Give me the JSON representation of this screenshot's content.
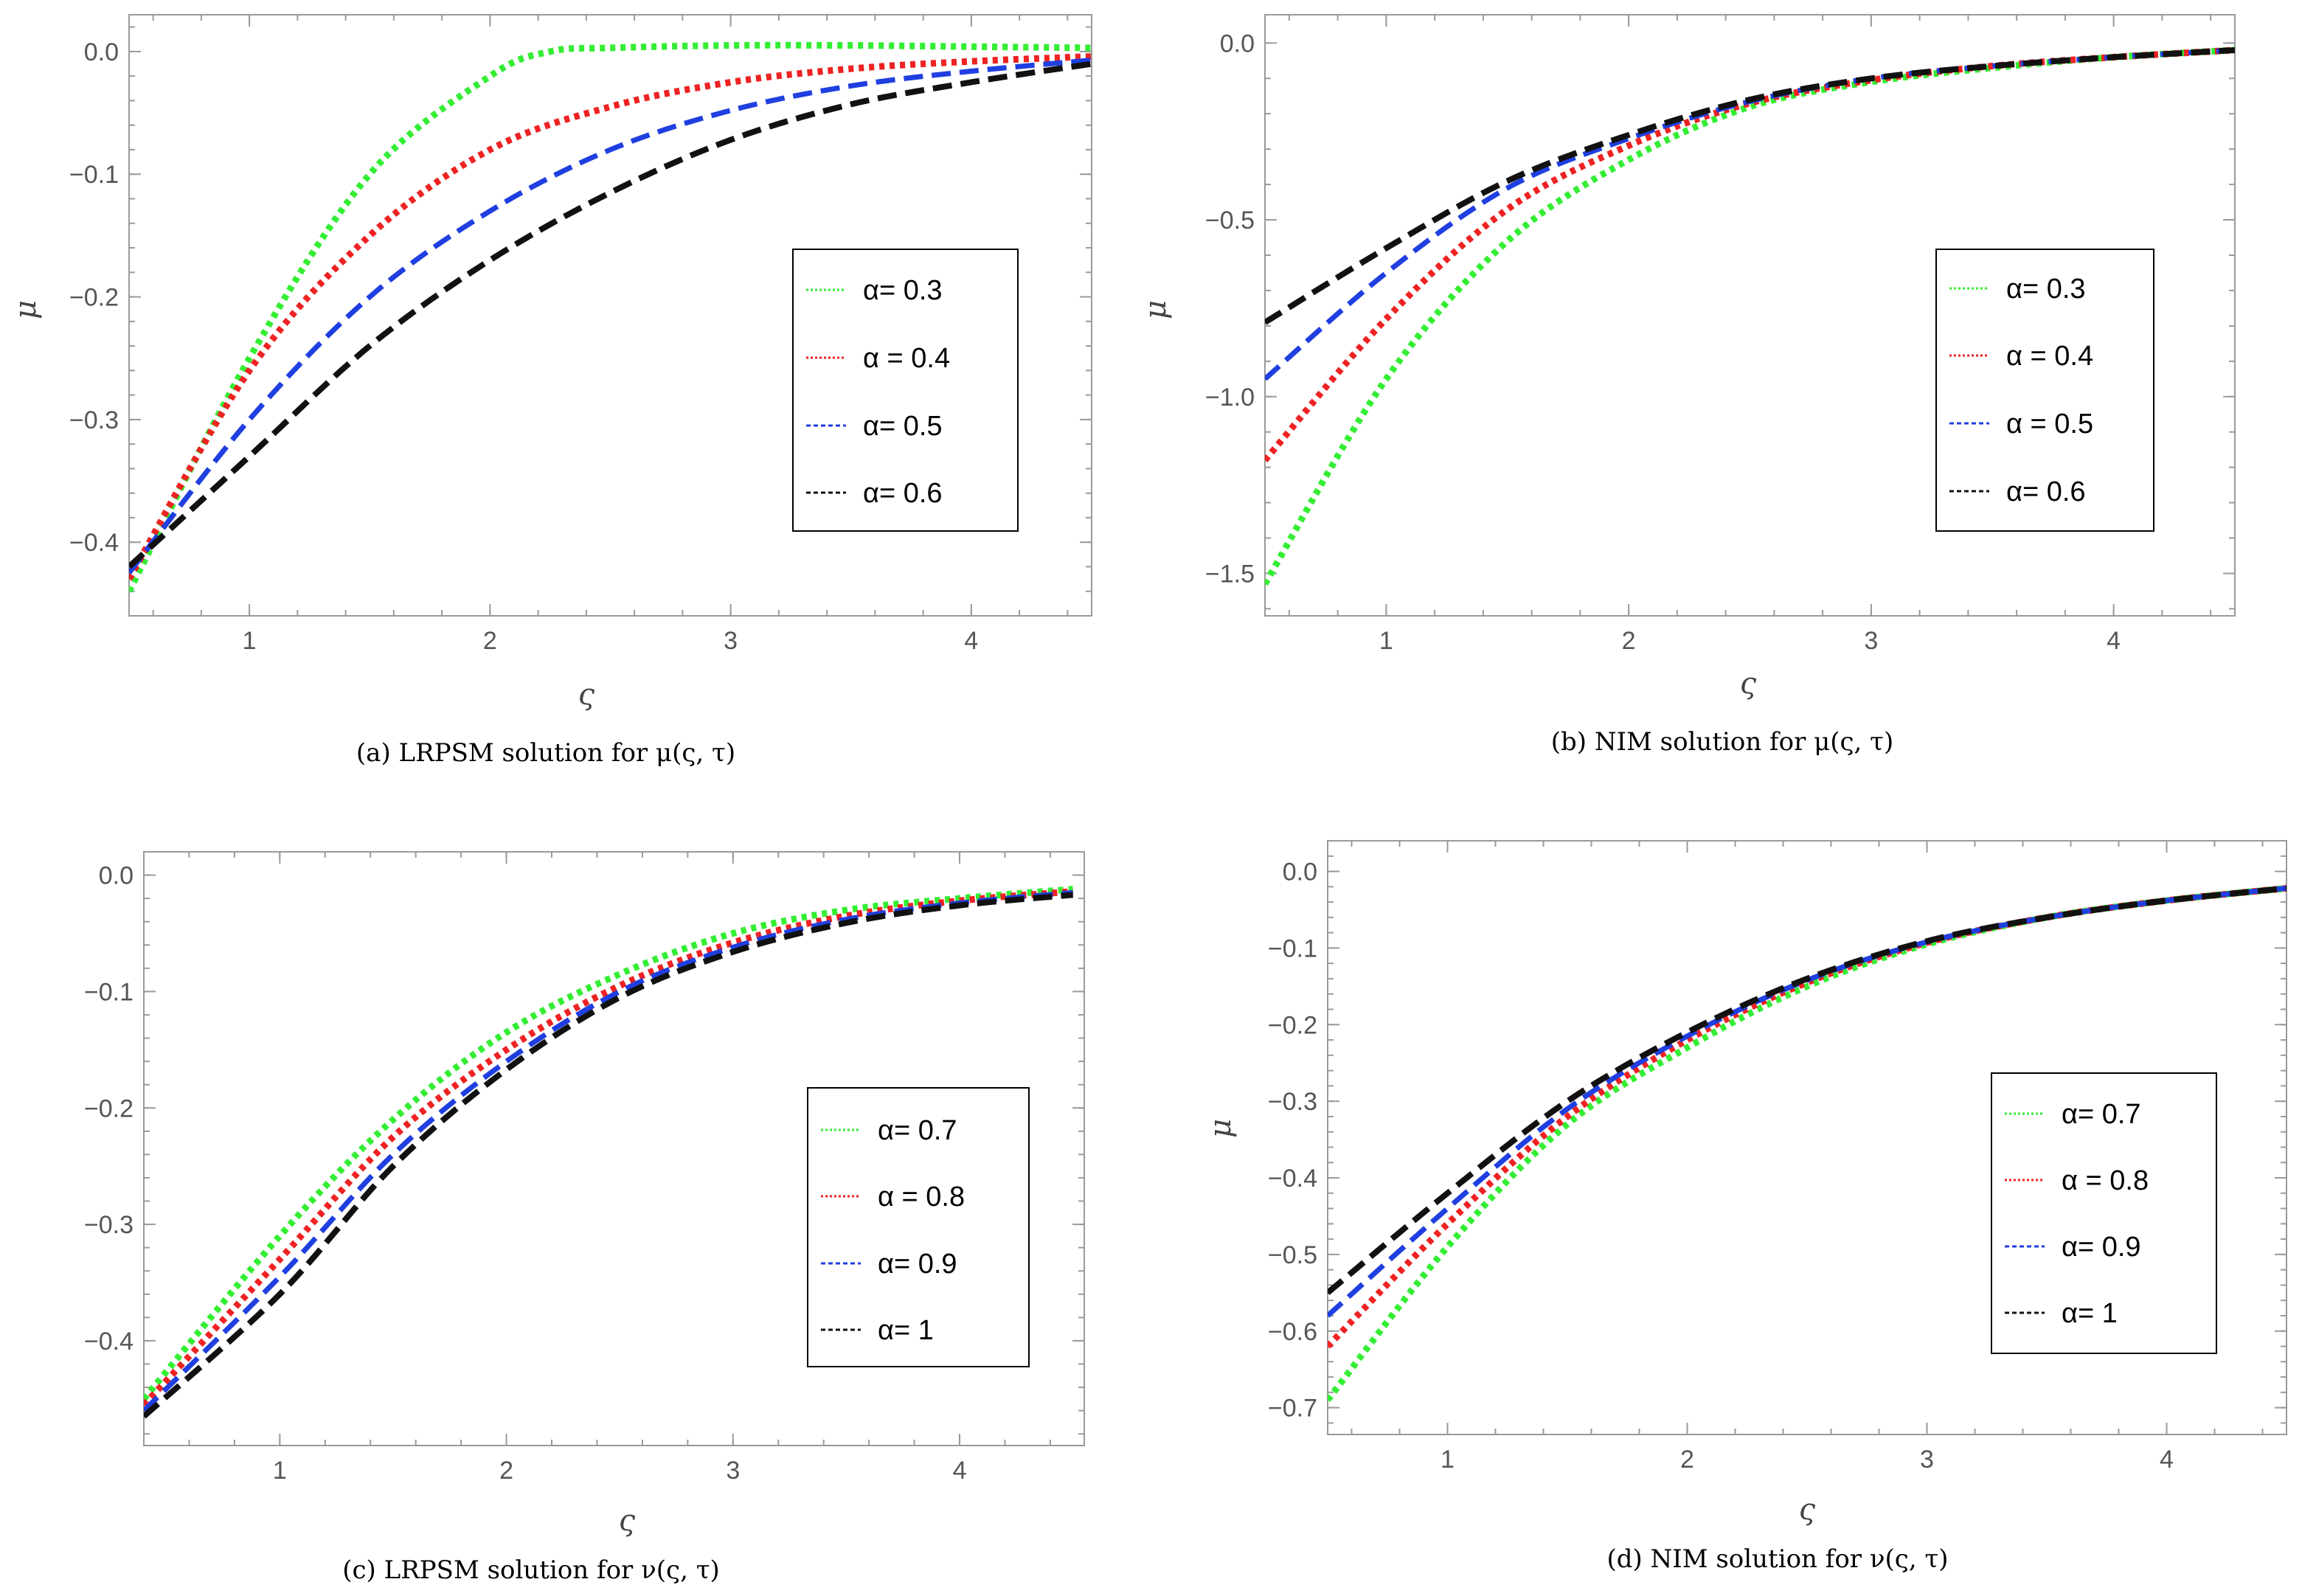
{
  "colors": {
    "green": "#33ee33",
    "red": "#ee2222",
    "blue": "#1f3fe0",
    "black": "#111111"
  },
  "chart_data": [
    {
      "type": "line",
      "caption": "(a) LRPSM solution for μ(ς, τ)",
      "xlabel": "ς",
      "ylabel": "μ",
      "xlim": [
        0.5,
        4.5
      ],
      "ylim": [
        -0.46,
        0.03
      ],
      "xticks": [
        1,
        2,
        3,
        4
      ],
      "yticks": [
        0.0,
        -0.1,
        -0.2,
        -0.3,
        -0.4
      ],
      "ytick_labels": [
        "0.0",
        "−0.1",
        "−0.2",
        "−0.3",
        "−0.4"
      ],
      "legend_position": "right-middle",
      "series": [
        {
          "name": "α= 0.3",
          "color": "green",
          "style": "dotted",
          "x": [
            0.5,
            1,
            1.5,
            2,
            2.25,
            2.5,
            3,
            3.5,
            4,
            4.5
          ],
          "y": [
            -0.44,
            -0.25,
            -0.1,
            -0.02,
            0.0,
            0.003,
            0.005,
            0.005,
            0.004,
            0.003
          ]
        },
        {
          "name": "α = 0.4",
          "color": "red",
          "style": "dotted",
          "x": [
            0.5,
            1,
            1.5,
            2,
            2.5,
            3,
            3.5,
            4,
            4.5
          ],
          "y": [
            -0.43,
            -0.26,
            -0.15,
            -0.08,
            -0.045,
            -0.025,
            -0.014,
            -0.008,
            -0.004
          ]
        },
        {
          "name": "α= 0.5",
          "color": "blue",
          "style": "dashed",
          "x": [
            0.5,
            1,
            1.5,
            2,
            2.5,
            3,
            3.5,
            4,
            4.5
          ],
          "y": [
            -0.425,
            -0.3,
            -0.2,
            -0.13,
            -0.08,
            -0.048,
            -0.028,
            -0.016,
            -0.007
          ]
        },
        {
          "name": "α= 0.6",
          "color": "black",
          "style": "dashed",
          "x": [
            0.5,
            1,
            1.5,
            2,
            2.5,
            3,
            3.5,
            4,
            4.5
          ],
          "y": [
            -0.42,
            -0.33,
            -0.24,
            -0.17,
            -0.115,
            -0.072,
            -0.043,
            -0.025,
            -0.01
          ]
        }
      ]
    },
    {
      "type": "line",
      "caption": "(b) NIM solution for μ(ς, τ)",
      "xlabel": "ς",
      "ylabel": "μ",
      "xlim": [
        0.5,
        4.5
      ],
      "ylim": [
        -1.62,
        0.08
      ],
      "xticks": [
        1,
        2,
        3,
        4
      ],
      "yticks": [
        0.0,
        -0.5,
        -1.0,
        -1.5
      ],
      "ytick_labels": [
        "0.0",
        "−0.5",
        "−1.0",
        "−1.5"
      ],
      "legend_position": "right-middle",
      "series": [
        {
          "name": "α= 0.3",
          "color": "green",
          "style": "dotted",
          "x": [
            0.5,
            1,
            1.5,
            2,
            2.5,
            3,
            3.5,
            4,
            4.5
          ],
          "y": [
            -1.53,
            -0.95,
            -0.56,
            -0.33,
            -0.18,
            -0.11,
            -0.07,
            -0.04,
            -0.02
          ]
        },
        {
          "name": "α = 0.4",
          "color": "red",
          "style": "dotted",
          "x": [
            0.5,
            1,
            1.5,
            2,
            2.5,
            3,
            3.5,
            4,
            4.5
          ],
          "y": [
            -1.18,
            -0.78,
            -0.47,
            -0.29,
            -0.17,
            -0.105,
            -0.065,
            -0.04,
            -0.02
          ]
        },
        {
          "name": "α = 0.5",
          "color": "blue",
          "style": "dashed",
          "x": [
            0.5,
            1,
            1.5,
            2,
            2.5,
            3,
            3.5,
            4,
            4.5
          ],
          "y": [
            -0.95,
            -0.65,
            -0.41,
            -0.27,
            -0.165,
            -0.1,
            -0.065,
            -0.04,
            -0.02
          ]
        },
        {
          "name": "α= 0.6",
          "color": "black",
          "style": "dashed",
          "x": [
            0.5,
            1,
            1.5,
            2,
            2.5,
            3,
            3.5,
            4,
            4.5
          ],
          "y": [
            -0.79,
            -0.58,
            -0.39,
            -0.26,
            -0.16,
            -0.1,
            -0.065,
            -0.04,
            -0.02
          ]
        }
      ]
    },
    {
      "type": "line",
      "caption": "(c) LRPSM solution for ν(ς, τ)",
      "xlabel": "ς",
      "ylabel": "",
      "xlim": [
        0.4,
        4.55
      ],
      "ylim": [
        -0.49,
        0.02
      ],
      "xticks": [
        1,
        2,
        3,
        4
      ],
      "yticks": [
        0.0,
        -0.1,
        -0.2,
        -0.3,
        -0.4
      ],
      "ytick_labels": [
        "0.0",
        "−0.1",
        "−0.2",
        "−0.3",
        "−0.4"
      ],
      "legend_position": "right-middle",
      "series": [
        {
          "name": "α= 0.7",
          "color": "green",
          "style": "dotted",
          "x": [
            0.4,
            1,
            1.5,
            2,
            2.5,
            3,
            3.5,
            4,
            4.5
          ],
          "y": [
            -0.45,
            -0.31,
            -0.21,
            -0.135,
            -0.085,
            -0.05,
            -0.03,
            -0.02,
            -0.012
          ]
        },
        {
          "name": "α = 0.8",
          "color": "red",
          "style": "dotted",
          "x": [
            0.4,
            1,
            1.5,
            2,
            2.5,
            3,
            3.5,
            4,
            4.5
          ],
          "y": [
            -0.455,
            -0.33,
            -0.225,
            -0.15,
            -0.095,
            -0.058,
            -0.035,
            -0.022,
            -0.014
          ]
        },
        {
          "name": "α= 0.9",
          "color": "blue",
          "style": "dashed",
          "x": [
            0.4,
            1,
            1.5,
            2,
            2.5,
            3,
            3.5,
            4,
            4.5
          ],
          "y": [
            -0.46,
            -0.345,
            -0.24,
            -0.16,
            -0.1,
            -0.062,
            -0.038,
            -0.024,
            -0.015
          ]
        },
        {
          "name": "α= 1",
          "color": "black",
          "style": "dashed",
          "x": [
            0.4,
            1,
            1.5,
            2,
            2.5,
            3,
            3.5,
            4,
            4.5
          ],
          "y": [
            -0.465,
            -0.36,
            -0.25,
            -0.167,
            -0.105,
            -0.066,
            -0.041,
            -0.026,
            -0.017
          ]
        }
      ]
    },
    {
      "type": "line",
      "caption": "(d) NIM solution for ν(ς, τ)",
      "xlabel": "ς",
      "ylabel": "μ",
      "xlim": [
        0.5,
        4.5
      ],
      "ylim": [
        -0.735,
        0.04
      ],
      "xticks": [
        1,
        2,
        3,
        4
      ],
      "yticks": [
        0.0,
        -0.1,
        -0.2,
        -0.3,
        -0.4,
        -0.5,
        -0.6,
        -0.7
      ],
      "ytick_labels": [
        "0.0",
        "−0.1",
        "−0.2",
        "−0.3",
        "−0.4",
        "−0.5",
        "−0.6",
        "−0.7"
      ],
      "legend_position": "right-middle",
      "series": [
        {
          "name": "α= 0.7",
          "color": "green",
          "style": "dotted",
          "x": [
            0.5,
            1,
            1.5,
            2,
            2.5,
            3,
            3.5,
            4,
            4.5
          ],
          "y": [
            -0.69,
            -0.49,
            -0.33,
            -0.23,
            -0.15,
            -0.095,
            -0.06,
            -0.038,
            -0.022
          ]
        },
        {
          "name": "α = 0.8",
          "color": "red",
          "style": "dotted",
          "x": [
            0.5,
            1,
            1.5,
            2,
            2.5,
            3,
            3.5,
            4,
            4.5
          ],
          "y": [
            -0.62,
            -0.46,
            -0.32,
            -0.22,
            -0.145,
            -0.093,
            -0.06,
            -0.038,
            -0.022
          ]
        },
        {
          "name": "α= 0.9",
          "color": "blue",
          "style": "dashed",
          "x": [
            0.5,
            1,
            1.5,
            2,
            2.5,
            3,
            3.5,
            4,
            4.5
          ],
          "y": [
            -0.58,
            -0.44,
            -0.31,
            -0.215,
            -0.142,
            -0.092,
            -0.06,
            -0.038,
            -0.022
          ]
        },
        {
          "name": "α= 1",
          "color": "black",
          "style": "dashed",
          "x": [
            0.5,
            1,
            1.5,
            2,
            2.5,
            3,
            3.5,
            4,
            4.5
          ],
          "y": [
            -0.55,
            -0.42,
            -0.3,
            -0.21,
            -0.14,
            -0.091,
            -0.06,
            -0.038,
            -0.022
          ]
        }
      ]
    }
  ]
}
